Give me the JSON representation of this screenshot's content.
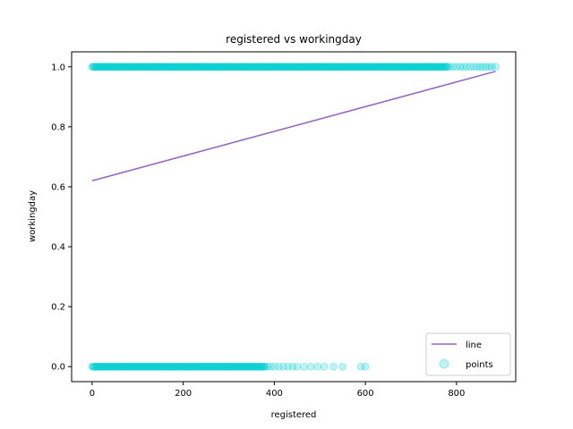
{
  "chart_data": {
    "type": "scatter",
    "title": "registered vs workingday",
    "xlabel": "registered",
    "ylabel": "workingday",
    "xlim": [
      -45,
      930
    ],
    "ylim": [
      -0.05,
      1.05
    ],
    "xticks": [
      0,
      200,
      400,
      600,
      800
    ],
    "xtick_labels": [
      "0",
      "200",
      "400",
      "600",
      "800"
    ],
    "yticks": [
      0.0,
      0.2,
      0.4,
      0.6,
      0.8,
      1.0
    ],
    "ytick_labels": [
      "0.0",
      "0.2",
      "0.4",
      "0.6",
      "0.8",
      "1.0"
    ],
    "grid": false,
    "legend_position": "bottom-right",
    "series": [
      {
        "name": "line",
        "kind": "line",
        "color": "#9467bd",
        "x": [
          0,
          886
        ],
        "y": [
          0.62,
          0.985
        ]
      },
      {
        "name": "points",
        "kind": "scatter",
        "color": "#00ced1",
        "y_levels": [
          1.0,
          0.0
        ],
        "dense_x_range": {
          "1.0": [
            0,
            780
          ],
          "0.0": [
            0,
            380
          ]
        },
        "x_outliers": {
          "1.0": [
            785,
            792,
            800,
            808,
            815,
            822,
            830,
            838,
            845,
            852,
            858,
            865,
            872,
            878,
            886
          ],
          "0.0": [
            385,
            392,
            400,
            410,
            420,
            430,
            440,
            450,
            465,
            480,
            495,
            510,
            530,
            550,
            590,
            600
          ]
        }
      }
    ]
  }
}
